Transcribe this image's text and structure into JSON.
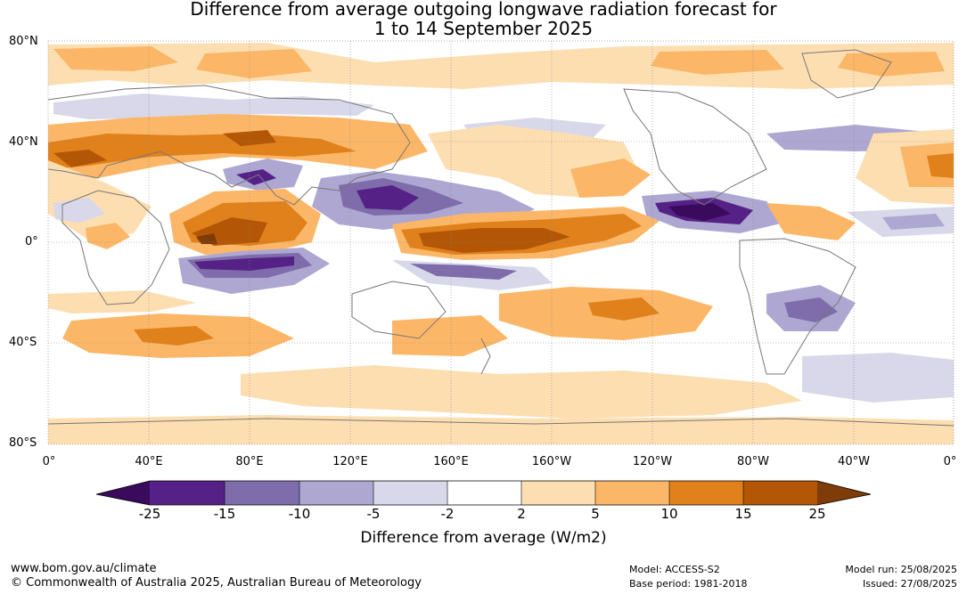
{
  "title_line1": "Difference from average outgoing longwave radiation forecast for",
  "title_line2": "1 to 14 September 2025",
  "lat_labels": [
    "80°N",
    "40°N",
    "0°",
    "40°S",
    "80°S"
  ],
  "lon_labels": [
    "0°",
    "40°E",
    "80°E",
    "120°E",
    "160°E",
    "160°W",
    "120°W",
    "80°W",
    "40°W",
    "0°"
  ],
  "colorbar": {
    "ticks": [
      "-25",
      "-15",
      "-10",
      "-5",
      "-2",
      "2",
      "5",
      "10",
      "15",
      "25"
    ],
    "colors": [
      "#3a0a5c",
      "#562186",
      "#7e6cab",
      "#ada7d2",
      "#d8d8ea",
      "#ffffff",
      "#fddeb1",
      "#fbb767",
      "#e0811c",
      "#b35605",
      "#7f3b08"
    ],
    "label": "Difference from average (W/m2)"
  },
  "footer": {
    "website": "www.bom.gov.au/climate",
    "copyright": "© Commonwealth of Australia 2025, Australian Bureau of Meteorology",
    "model": "Model: ACCESS-S2",
    "base_period": "Base period: 1981-2018",
    "model_run": "Model run: 25/08/2025",
    "issued": "Issued: 27/08/2025"
  }
}
